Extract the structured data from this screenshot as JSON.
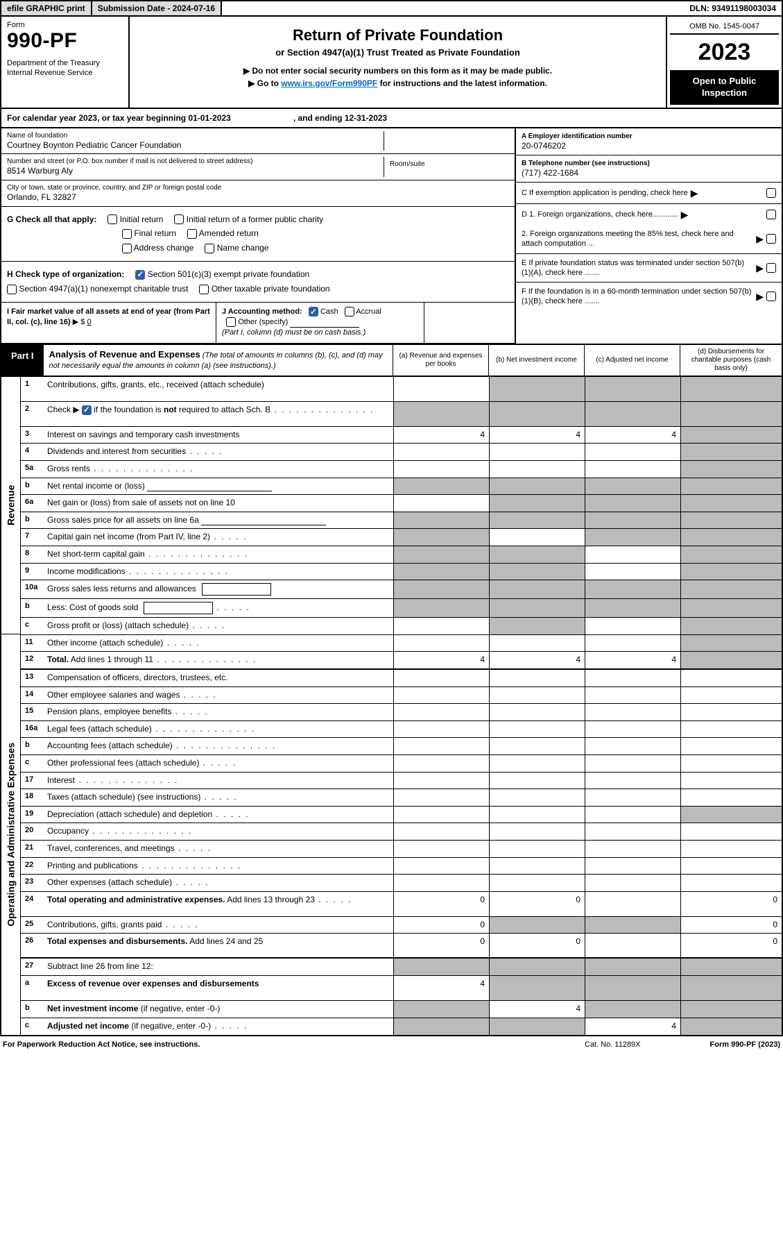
{
  "top_bar": {
    "efile": "efile GRAPHIC print",
    "submission": "Submission Date - 2024-07-16",
    "dln": "DLN: 93491198003034"
  },
  "header": {
    "form_word": "Form",
    "form_no": "990-PF",
    "dept": "Department of the Treasury\nInternal Revenue Service",
    "title": "Return of Private Foundation",
    "subtitle": "or Section 4947(a)(1) Trust Treated as Private Foundation",
    "instr1": "▶ Do not enter social security numbers on this form as it may be made public.",
    "instr2": "▶ Go to ",
    "instr_link": "www.irs.gov/Form990PF",
    "instr3": " for instructions and the latest information.",
    "omb": "OMB No. 1545-0047",
    "year": "2023",
    "open_public": "Open to Public\nInspection"
  },
  "cal_year": {
    "prefix": "For calendar year 2023, or tax year beginning 01-01-2023",
    "suffix": ", and ending 12-31-2023"
  },
  "entity": {
    "name_lbl": "Name of foundation",
    "name": "Courtney Boynton Pediatric Cancer Foundation",
    "addr_lbl": "Number and street (or P.O. box number if mail is not delivered to street address)",
    "addr": "8514 Warburg Aly",
    "room_lbl": "Room/suite",
    "city_lbl": "City or town, state or province, country, and ZIP or foreign postal code",
    "city": "Orlando, FL  32827",
    "ein_lbl": "A Employer identification number",
    "ein": "20-0746202",
    "phone_lbl": "B Telephone number (see instructions)",
    "phone": "(717) 422-1684",
    "c_text": "C If exemption application is pending, check here"
  },
  "checks": {
    "g_label": "G Check all that apply:",
    "g_opts": [
      "Initial return",
      "Initial return of a former public charity",
      "Final return",
      "Amended return",
      "Address change",
      "Name change"
    ],
    "h_label": "H Check type of organization:",
    "h1": "Section 501(c)(3) exempt private foundation",
    "h2": "Section 4947(a)(1) nonexempt charitable trust",
    "h3": "Other taxable private foundation",
    "d1": "D 1. Foreign organizations, check here............",
    "d2": "2. Foreign organizations meeting the 85% test, check here and attach computation ...",
    "e": "E  If private foundation status was terminated under section 507(b)(1)(A), check here .......",
    "f": "F  If the foundation is in a 60-month termination under section 507(b)(1)(B), check here .......",
    "i_label": "I Fair market value of all assets at end of year (from Part II, col. (c), line 16)",
    "i_val": "0",
    "j_label": "J Accounting method:",
    "j_cash": "Cash",
    "j_accrual": "Accrual",
    "j_other": "Other (specify)",
    "j_note": "(Part I, column (d) must be on cash basis.)"
  },
  "part1": {
    "tab": "Part I",
    "title": "Analysis of Revenue and Expenses",
    "note": " (The total of amounts in columns (b), (c), and (d) may not necessarily equal the amounts in column (a) (see instructions).)",
    "col_a": "(a)   Revenue and expenses per books",
    "col_b": "(b)   Net investment income",
    "col_c": "(c)   Adjusted net income",
    "col_d": "(d)   Disbursements for charitable purposes (cash basis only)"
  },
  "sections": {
    "revenue": "Revenue",
    "opex": "Operating and Administrative Expenses"
  },
  "rows": [
    {
      "n": "1",
      "d": "Contributions, gifts, grants, etc., received (attach schedule)",
      "tall": true,
      "g": [
        false,
        true,
        true,
        true
      ]
    },
    {
      "n": "2",
      "d": "Check ▶ [✓] if the foundation is <b>not</b> required to attach Sch. B",
      "tall": true,
      "dots": true,
      "g": [
        true,
        true,
        true,
        true
      ],
      "special": "schb"
    },
    {
      "n": "3",
      "d": "Interest on savings and temporary cash investments",
      "a": "4",
      "b": "4",
      "c": "4",
      "g": [
        false,
        false,
        false,
        true
      ]
    },
    {
      "n": "4",
      "d": "Dividends and interest from securities",
      "dots": "short",
      "g": [
        false,
        false,
        false,
        true
      ]
    },
    {
      "n": "5a",
      "d": "Gross rents",
      "dots": true,
      "g": [
        false,
        false,
        false,
        true
      ]
    },
    {
      "n": "b",
      "d": "Net rental income or (loss)",
      "line": true,
      "g": [
        true,
        true,
        true,
        true
      ]
    },
    {
      "n": "6a",
      "d": "Net gain or (loss) from sale of assets not on line 10",
      "g": [
        false,
        true,
        true,
        true
      ]
    },
    {
      "n": "b",
      "d": "Gross sales price for all assets on line 6a",
      "line": true,
      "g": [
        true,
        true,
        true,
        true
      ]
    },
    {
      "n": "7",
      "d": "Capital gain net income (from Part IV, line 2)",
      "dots": "short",
      "g": [
        true,
        false,
        true,
        true
      ]
    },
    {
      "n": "8",
      "d": "Net short-term capital gain",
      "dots": true,
      "g": [
        true,
        true,
        false,
        true
      ]
    },
    {
      "n": "9",
      "d": "Income modifications",
      "dots": true,
      "g": [
        true,
        true,
        false,
        true
      ]
    },
    {
      "n": "10a",
      "d": "Gross sales less returns and allowances",
      "box": true,
      "g": [
        true,
        true,
        true,
        true
      ]
    },
    {
      "n": "b",
      "d": "Less: Cost of goods sold",
      "dots": "short",
      "box": true,
      "g": [
        true,
        true,
        true,
        true
      ]
    },
    {
      "n": "c",
      "d": "Gross profit or (loss) (attach schedule)",
      "dots": "short",
      "g": [
        false,
        true,
        false,
        true
      ]
    },
    {
      "n": "11",
      "d": "Other income (attach schedule)",
      "dots": "short",
      "g": [
        false,
        false,
        false,
        true
      ]
    },
    {
      "n": "12",
      "d": "<b>Total.</b> Add lines 1 through 11",
      "dots": true,
      "a": "4",
      "b": "4",
      "c": "4",
      "g": [
        false,
        false,
        false,
        true
      ],
      "sep": true
    },
    {
      "n": "13",
      "d": "Compensation of officers, directors, trustees, etc.",
      "g": [
        false,
        false,
        false,
        false
      ]
    },
    {
      "n": "14",
      "d": "Other employee salaries and wages",
      "dots": "short",
      "g": [
        false,
        false,
        false,
        false
      ]
    },
    {
      "n": "15",
      "d": "Pension plans, employee benefits",
      "dots": "short",
      "g": [
        false,
        false,
        false,
        false
      ]
    },
    {
      "n": "16a",
      "d": "Legal fees (attach schedule)",
      "dots": true,
      "g": [
        false,
        false,
        false,
        false
      ]
    },
    {
      "n": "b",
      "d": "Accounting fees (attach schedule)",
      "dots": true,
      "g": [
        false,
        false,
        false,
        false
      ]
    },
    {
      "n": "c",
      "d": "Other professional fees (attach schedule)",
      "dots": "short",
      "g": [
        false,
        false,
        false,
        false
      ]
    },
    {
      "n": "17",
      "d": "Interest",
      "dots": true,
      "g": [
        false,
        false,
        false,
        false
      ]
    },
    {
      "n": "18",
      "d": "Taxes (attach schedule) (see instructions)",
      "dots": "short",
      "g": [
        false,
        false,
        false,
        false
      ]
    },
    {
      "n": "19",
      "d": "Depreciation (attach schedule) and depletion",
      "dots": "short",
      "g": [
        false,
        false,
        false,
        true
      ]
    },
    {
      "n": "20",
      "d": "Occupancy",
      "dots": true,
      "g": [
        false,
        false,
        false,
        false
      ]
    },
    {
      "n": "21",
      "d": "Travel, conferences, and meetings",
      "dots": "short",
      "g": [
        false,
        false,
        false,
        false
      ]
    },
    {
      "n": "22",
      "d": "Printing and publications",
      "dots": true,
      "g": [
        false,
        false,
        false,
        false
      ]
    },
    {
      "n": "23",
      "d": "Other expenses (attach schedule)",
      "dots": "short",
      "g": [
        false,
        false,
        false,
        false
      ]
    },
    {
      "n": "24",
      "d": "<b>Total operating and administrative expenses.</b> Add lines 13 through 23",
      "dots": "short",
      "tall": true,
      "a": "0",
      "b": "0",
      "dv": "0",
      "g": [
        false,
        false,
        false,
        false
      ]
    },
    {
      "n": "25",
      "d": "Contributions, gifts, grants paid",
      "dots": "short",
      "a": "0",
      "dv": "0",
      "g": [
        false,
        true,
        true,
        false
      ]
    },
    {
      "n": "26",
      "d": "<b>Total expenses and disbursements.</b> Add lines 24 and 25",
      "tall": true,
      "a": "0",
      "b": "0",
      "dv": "0",
      "g": [
        false,
        false,
        false,
        false
      ],
      "sep": true
    },
    {
      "n": "27",
      "d": "Subtract line 26 from line 12:",
      "g": [
        true,
        true,
        true,
        true
      ]
    },
    {
      "n": "a",
      "d": "<b>Excess of revenue over expenses and disbursements</b>",
      "tall": true,
      "a": "4",
      "g": [
        false,
        true,
        true,
        true
      ]
    },
    {
      "n": "b",
      "d": "<b>Net investment income</b> (if negative, enter -0-)",
      "b": "4",
      "g": [
        true,
        false,
        true,
        true
      ]
    },
    {
      "n": "c",
      "d": "<b>Adjusted net income</b> (if negative, enter -0-)",
      "dots": "short",
      "c": "4",
      "g": [
        true,
        true,
        false,
        true
      ]
    }
  ],
  "footer": {
    "left": "For Paperwork Reduction Act Notice, see instructions.",
    "mid": "Cat. No. 11289X",
    "right": "Form 990-PF (2023)"
  }
}
